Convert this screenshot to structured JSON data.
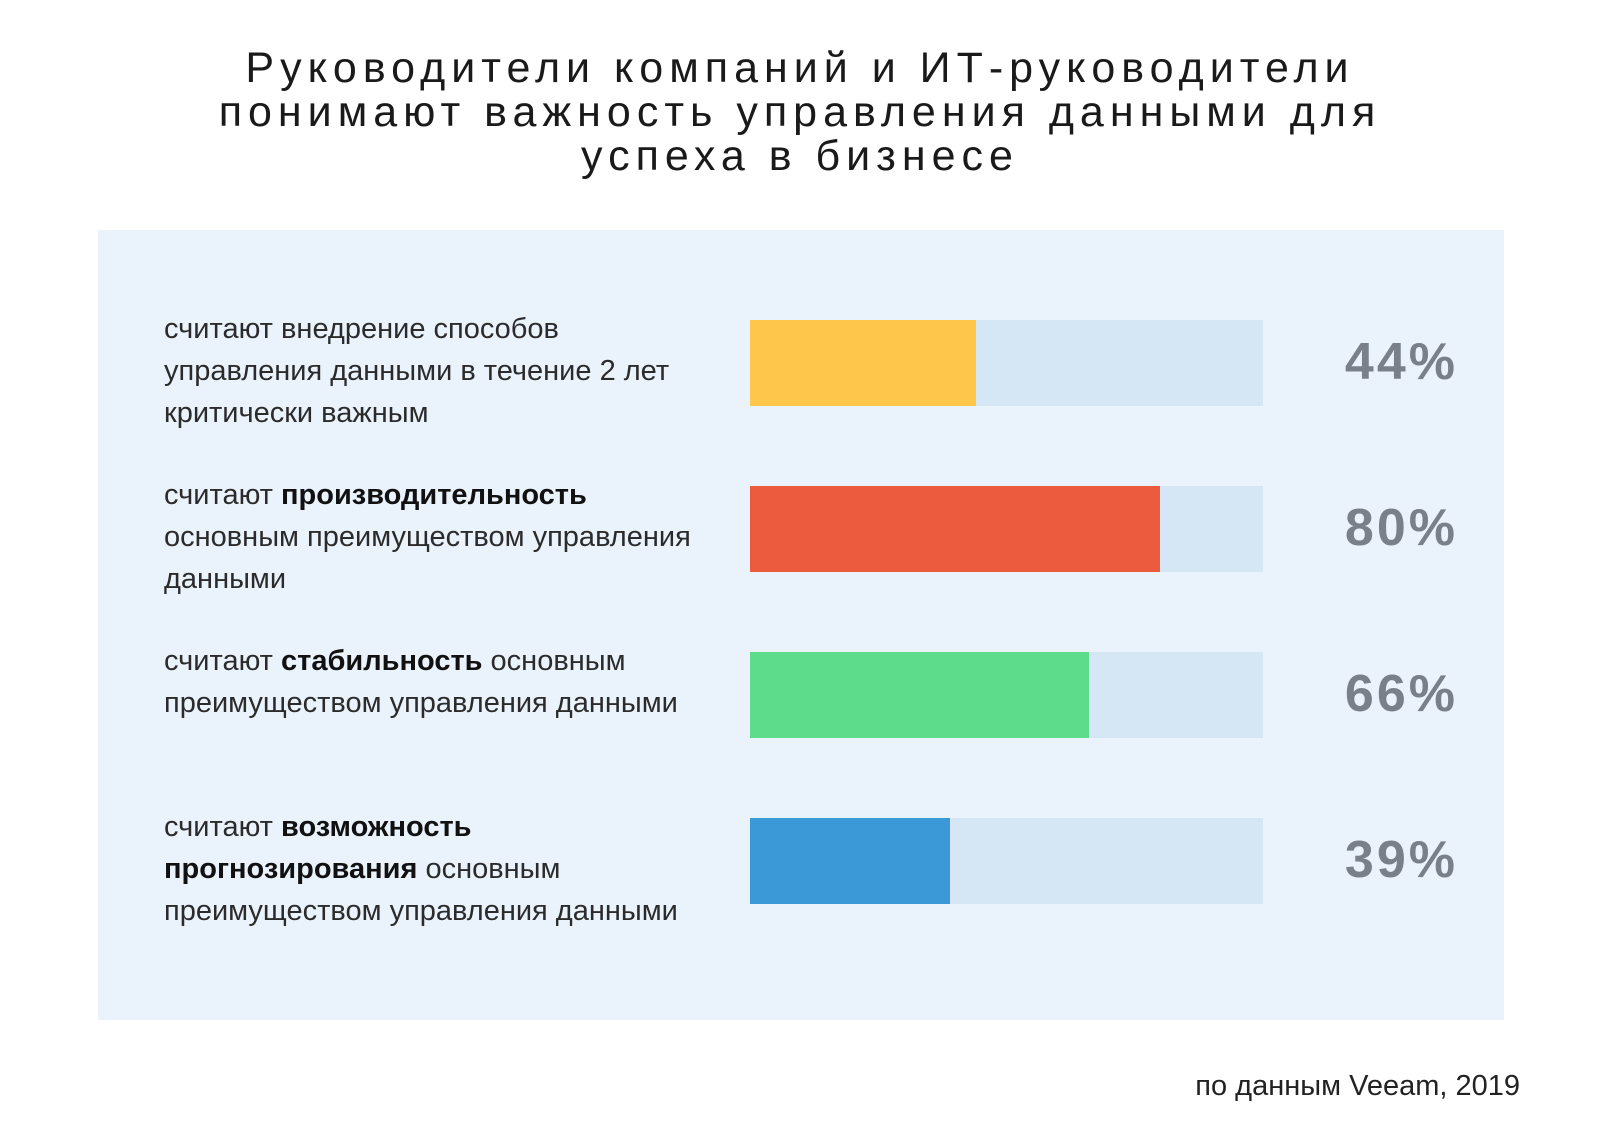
{
  "title_lines": [
    "Руководители компаний и ИТ-руководители",
    "понимают важность управления данными для",
    "успеха в бизнесе"
  ],
  "source": "по данным Veeam, 2019",
  "chart_data": {
    "type": "bar",
    "orientation": "horizontal",
    "title": "Руководители компаний и ИТ-руководители понимают важность управления данными для успеха в бизнесе",
    "categories": [
      "считают внедрение способов управления данными в течение 2 лет критически важным",
      "считают производительность основным преимуществом управления данными",
      "считают стабильность основным преимуществом управления данными",
      "считают возможность прогнозирования основным преимуществом управления данными"
    ],
    "values": [
      44,
      80,
      66,
      39
    ],
    "value_labels": [
      "44%",
      "80%",
      "66%",
      "39%"
    ],
    "ylim": [
      0,
      100
    ],
    "bar_colors": [
      "#fec64a",
      "#ed5b3e",
      "#5ddc8c",
      "#3b99d8"
    ],
    "track_color": "#d5e6f4",
    "grid": false
  },
  "rows": [
    {
      "label_parts": [
        {
          "text": "считают внедрение способов управления данными в течение 2 лет критически важным",
          "bold": false
        }
      ]
    },
    {
      "label_parts": [
        {
          "text": "считают ",
          "bold": false
        },
        {
          "text": "производительность",
          "bold": true
        },
        {
          "text": " основным преимуществом управления данными",
          "bold": false
        }
      ]
    },
    {
      "label_parts": [
        {
          "text": "считают ",
          "bold": false
        },
        {
          "text": "стабильность",
          "bold": true
        },
        {
          "text": " основным преимуществом управления данными",
          "bold": false
        }
      ]
    },
    {
      "label_parts": [
        {
          "text": "считают ",
          "bold": false
        },
        {
          "text": "возможность прогнозирования",
          "bold": true
        },
        {
          "text": " основным преимуществом управления данными",
          "bold": false
        }
      ]
    }
  ]
}
